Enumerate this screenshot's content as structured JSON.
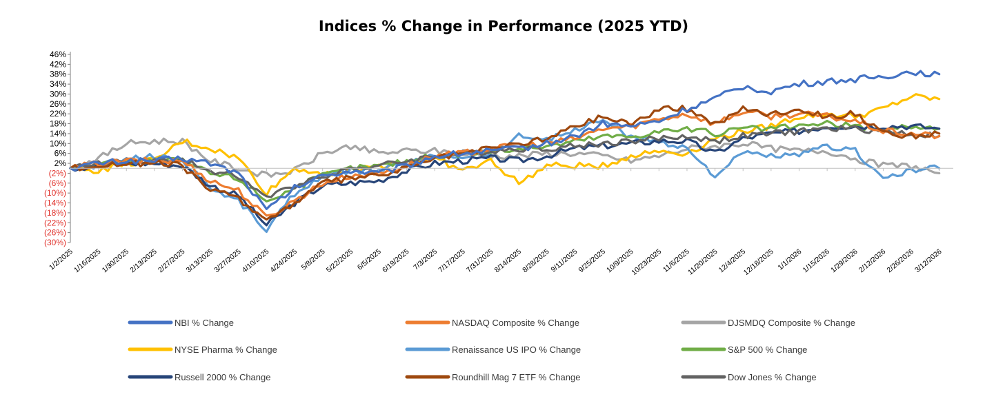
{
  "chart_data": {
    "type": "line",
    "title": "Indices % Change in Performance (2025 YTD)",
    "xlabel": "",
    "ylabel": "",
    "ylim": [
      -30,
      46
    ],
    "y_ticks": [
      {
        "value": 46,
        "label": "46%"
      },
      {
        "value": 42,
        "label": "42%"
      },
      {
        "value": 38,
        "label": "38%"
      },
      {
        "value": 34,
        "label": "34%"
      },
      {
        "value": 30,
        "label": "30%"
      },
      {
        "value": 26,
        "label": "26%"
      },
      {
        "value": 22,
        "label": "22%"
      },
      {
        "value": 18,
        "label": "18%"
      },
      {
        "value": 14,
        "label": "14%"
      },
      {
        "value": 10,
        "label": "10%"
      },
      {
        "value": 6,
        "label": "6%"
      },
      {
        "value": 2,
        "label": "2%"
      },
      {
        "value": -2,
        "label": "(2%)"
      },
      {
        "value": -6,
        "label": "(6%)"
      },
      {
        "value": -10,
        "label": "(10%)"
      },
      {
        "value": -14,
        "label": "(14%)"
      },
      {
        "value": -18,
        "label": "(18%)"
      },
      {
        "value": -22,
        "label": "(22%)"
      },
      {
        "value": -26,
        "label": "(26%)"
      },
      {
        "value": -30,
        "label": "(30%)"
      }
    ],
    "negative_label_color": "#e0302a",
    "positive_label_color": "#000000",
    "categories": [
      "1/2/2025",
      "1/16/2025",
      "1/30/2025",
      "2/13/2025",
      "2/27/2025",
      "3/13/2025",
      "3/27/2025",
      "4/10/2025",
      "4/24/2025",
      "5/8/2025",
      "5/22/2025",
      "6/5/2025",
      "6/19/2025",
      "7/3/2025",
      "7/17/2025",
      "7/31/2025",
      "8/14/2025",
      "8/28/2025",
      "9/11/2025",
      "9/25/2025",
      "10/9/2025",
      "10/23/2025",
      "11/6/2025",
      "11/20/2025",
      "12/4/2025",
      "12/18/2025",
      "1/1/2026",
      "1/15/2026",
      "1/29/2026",
      "2/12/2026",
      "2/26/2026",
      "3/12/2026"
    ],
    "x_end_index": 31.5,
    "series": [
      {
        "name": "NBI % Change",
        "color": "#4472c4",
        "values": [
          0,
          2,
          3,
          3,
          4,
          2,
          -2,
          -17,
          -8,
          -3,
          -1,
          -2,
          1,
          5,
          6,
          7,
          8,
          10,
          13,
          18,
          17,
          19,
          24,
          28,
          33,
          31,
          34,
          35,
          36,
          37,
          39,
          38
        ]
      },
      {
        "name": "NASDAQ Composite % Change",
        "color": "#ed7d31",
        "values": [
          0,
          2,
          3,
          3,
          3,
          -5,
          -9,
          -20,
          -13,
          -6,
          -3,
          -2,
          1,
          5,
          6,
          8,
          9,
          10,
          12,
          16,
          17,
          20,
          22,
          18,
          23,
          21,
          22,
          21,
          19,
          15,
          14,
          13
        ]
      },
      {
        "name": "DJSMDQ Composite % Change",
        "color": "#a5a5a5",
        "values": [
          0,
          4,
          10,
          11,
          11,
          3,
          0,
          -3,
          -1,
          6,
          9,
          6,
          7,
          7,
          6,
          5,
          5,
          6,
          6,
          5,
          3,
          5,
          8,
          9,
          10,
          8,
          7,
          7,
          4,
          1,
          1,
          -2
        ]
      },
      {
        "name": "NYSE  Pharma % Change",
        "color": "#ffc000",
        "values": [
          0,
          -1,
          2,
          3,
          11,
          8,
          4,
          -10,
          0,
          -2,
          -1,
          1,
          3,
          4,
          -1,
          3,
          -6,
          1,
          1,
          1,
          5,
          7,
          6,
          12,
          15,
          17,
          21,
          22,
          21,
          24,
          29,
          28
        ]
      },
      {
        "name": "Renaissance US IPO % Change",
        "color": "#5b9bd5",
        "values": [
          0,
          1,
          4,
          5,
          3,
          -8,
          -13,
          -25,
          -10,
          -3,
          -1,
          -1,
          2,
          5,
          5,
          6,
          13,
          12,
          15,
          20,
          12,
          11,
          8,
          -3,
          6,
          5,
          5,
          9,
          7,
          -4,
          -1,
          0
        ]
      },
      {
        "name": "S&P 500 % Change",
        "color": "#70ad47",
        "values": [
          0,
          2,
          3,
          3,
          3,
          -2,
          -4,
          -13,
          -8,
          -3,
          0,
          1,
          3,
          5,
          6,
          7,
          8,
          9,
          11,
          13,
          13,
          15,
          16,
          14,
          16,
          16,
          17,
          18,
          17,
          16,
          17,
          16
        ]
      },
      {
        "name": "Russell 2000 % Change",
        "color": "#264478",
        "values": [
          0,
          1,
          2,
          2,
          1,
          -7,
          -11,
          -23,
          -14,
          -7,
          -6,
          -5,
          -1,
          2,
          3,
          4,
          3,
          5,
          8,
          9,
          10,
          11,
          11,
          6,
          12,
          14,
          15,
          17,
          17,
          17,
          17,
          16
        ]
      },
      {
        "name": "Roundhill Mag 7 ETF % Change",
        "color": "#9e480e",
        "values": [
          0,
          1,
          2,
          2,
          1,
          -9,
          -12,
          -21,
          -14,
          -6,
          -4,
          -3,
          0,
          4,
          6,
          8,
          10,
          12,
          17,
          21,
          18,
          24,
          24,
          18,
          24,
          22,
          24,
          21,
          22,
          14,
          13,
          14
        ]
      },
      {
        "name": "Dow Jones % Change",
        "color": "#636363",
        "values": [
          0,
          2,
          3,
          3,
          3,
          -1,
          -3,
          -12,
          -7,
          -3,
          0,
          1,
          3,
          5,
          6,
          7,
          8,
          8,
          9,
          10,
          11,
          12,
          13,
          11,
          13,
          14,
          15,
          16,
          16,
          15,
          14,
          13
        ]
      }
    ]
  }
}
